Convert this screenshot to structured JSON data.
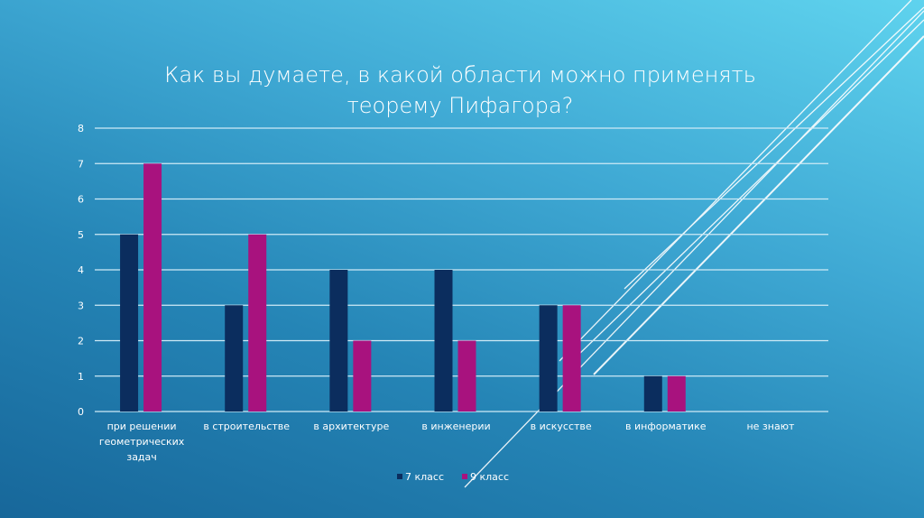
{
  "chart_data": {
    "type": "bar",
    "title": "Как вы думаете, в какой области можно применять теорему Пифагора?",
    "title_lines": [
      "Как вы думаете, в какой области можно применять",
      "теорему Пифагора?"
    ],
    "categories": [
      [
        "при решении",
        "геометрических",
        "задач"
      ],
      [
        "в строительстве"
      ],
      [
        "в архитектуре"
      ],
      [
        "в инженерии"
      ],
      [
        "в искусстве"
      ],
      [
        "в информатике"
      ],
      [
        "не знают"
      ]
    ],
    "series": [
      {
        "name": "7 класс",
        "color": "#0b2d5e",
        "values": [
          5,
          3,
          4,
          4,
          3,
          1,
          0
        ]
      },
      {
        "name": "9 класс",
        "color": "#a8127e",
        "values": [
          7,
          5,
          2,
          2,
          3,
          1,
          0
        ]
      }
    ],
    "ylim": [
      0,
      8
    ],
    "yticks": [
      0,
      1,
      2,
      3,
      4,
      5,
      6,
      7,
      8
    ],
    "grid": true,
    "legend": "bottom",
    "xlabel": "",
    "ylabel": ""
  }
}
